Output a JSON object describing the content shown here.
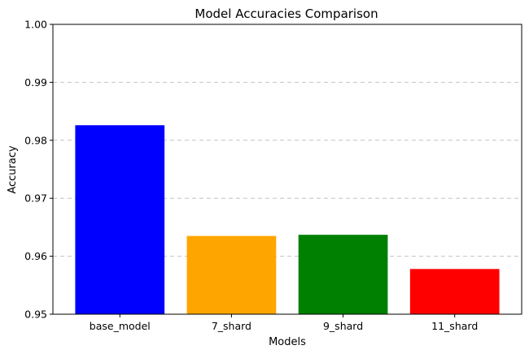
{
  "chart_data": {
    "type": "bar",
    "title": "Model Accuracies Comparison",
    "xlabel": "Models",
    "ylabel": "Accuracy",
    "categories": [
      "base_model",
      "7_shard",
      "9_shard",
      "11_shard"
    ],
    "values": [
      0.9826,
      0.9635,
      0.9637,
      0.9578
    ],
    "colors": [
      "#0000ff",
      "#ffa500",
      "#008000",
      "#ff0000"
    ],
    "ylim": [
      0.95,
      1.0
    ],
    "yticks": [
      0.95,
      0.96,
      0.97,
      0.98,
      0.99,
      1.0
    ],
    "ytick_labels": [
      "0.95",
      "0.96",
      "0.97",
      "0.98",
      "0.99",
      "1.00"
    ],
    "grid": "y-dashed",
    "legend": "none"
  }
}
